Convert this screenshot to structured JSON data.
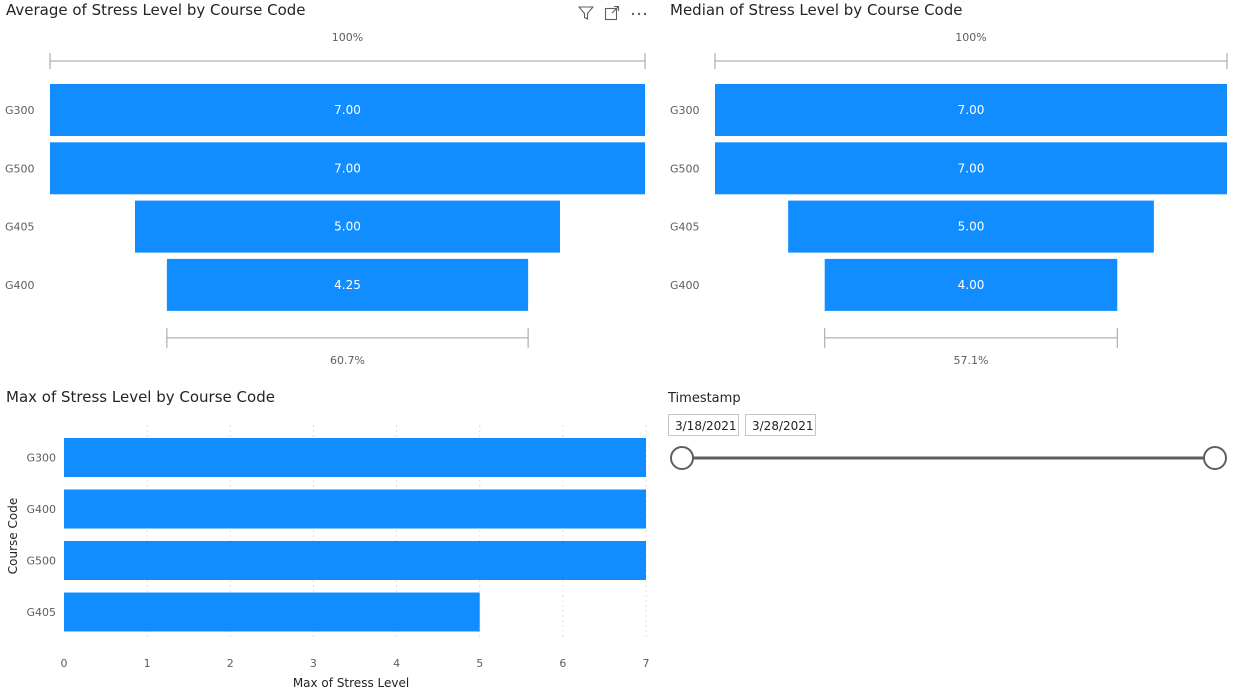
{
  "colors": {
    "bar": "#118dff",
    "axis": "#a19f9d",
    "grid": "#e1dfdd",
    "label": "#605e5c",
    "bar_label": "#ffffff"
  },
  "toolbar_icons": [
    "filter-icon",
    "focus-mode-icon",
    "more-options-icon"
  ],
  "chart_data": [
    {
      "type": "bar",
      "subtype": "funnel",
      "title": "Average of Stress Level by Course Code",
      "categories": [
        "G300",
        "G500",
        "G405",
        "G400"
      ],
      "values": [
        7.0,
        7.0,
        5.0,
        4.25
      ],
      "value_labels": [
        "7.00",
        "7.00",
        "5.00",
        "4.25"
      ],
      "top_percent_label": "100%",
      "bottom_percent_label": "60.7%"
    },
    {
      "type": "bar",
      "subtype": "funnel",
      "title": "Median of Stress Level by Course Code",
      "categories": [
        "G300",
        "G500",
        "G405",
        "G400"
      ],
      "values": [
        7.0,
        7.0,
        5.0,
        4.0
      ],
      "value_labels": [
        "7.00",
        "7.00",
        "5.00",
        "4.00"
      ],
      "top_percent_label": "100%",
      "bottom_percent_label": "57.1%"
    },
    {
      "type": "bar",
      "orientation": "horizontal",
      "title": "Max of Stress Level by Course Code",
      "categories": [
        "G300",
        "G400",
        "G500",
        "G405"
      ],
      "values": [
        7,
        7,
        7,
        5
      ],
      "xlabel": "Max of Stress Level",
      "ylabel": "Course Code",
      "xlim": [
        0,
        7
      ],
      "xticks": [
        0,
        1,
        2,
        3,
        4,
        5,
        6,
        7
      ],
      "grid": true
    }
  ],
  "slicer": {
    "title": "Timestamp",
    "start_date": "3/18/2021",
    "end_date": "3/28/2021",
    "range_start_fraction": 0,
    "range_end_fraction": 1
  }
}
